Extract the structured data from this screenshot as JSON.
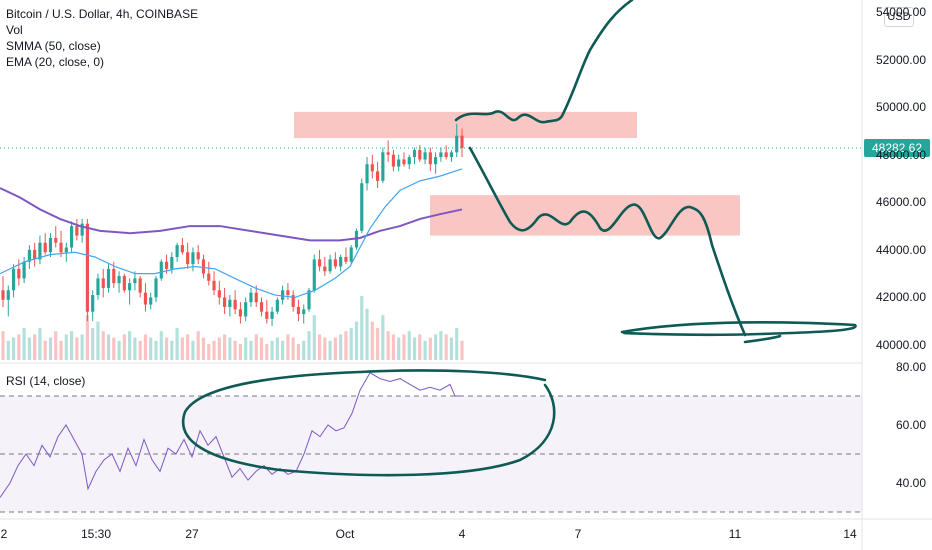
{
  "legend": {
    "title": "Bitcoin / U.S. Dollar, 4h, COINBASE",
    "vol": "Vol",
    "smma": "SMMA (50, close)",
    "ema": "EMA (20, close, 0)"
  },
  "rsi_label": "RSI (14, close)",
  "currency": "USD",
  "last_price": "48282.62",
  "colors": {
    "up": "#26a69a",
    "down": "#ef5350",
    "smma": "#7e57c2",
    "ema": "#42a5f5",
    "rsi": "#7e57c2",
    "zone": "#f7b8b4",
    "drawing": "#0f5a55"
  },
  "chart_data": [
    {
      "type": "candlestick",
      "title": "Bitcoin / U.S. Dollar, 4h, COINBASE",
      "ylim": [
        40000,
        54000
      ],
      "price_ticks": [
        "54000.00",
        "52000.00",
        "50000.00",
        "48000.00",
        "46000.00",
        "44000.00",
        "42000.00",
        "40000.00"
      ],
      "x_ticks": [
        "2",
        "15:30",
        "27",
        "Oct",
        "4",
        "7",
        "11",
        "14"
      ],
      "last_price": 48282.62,
      "candles": [
        [
          42300,
          42900,
          41600,
          41900
        ],
        [
          41900,
          42500,
          41200,
          42300
        ],
        [
          42300,
          43400,
          42000,
          43200
        ],
        [
          43200,
          43600,
          42500,
          42800
        ],
        [
          42800,
          43700,
          42600,
          43500
        ],
        [
          43500,
          44200,
          43200,
          44000
        ],
        [
          44000,
          44300,
          43300,
          43600
        ],
        [
          43600,
          44600,
          43400,
          44300
        ],
        [
          44300,
          44700,
          43800,
          43900
        ],
        [
          43900,
          44700,
          43700,
          44500
        ],
        [
          44500,
          45000,
          44100,
          44300
        ],
        [
          44300,
          44800,
          43700,
          43900
        ],
        [
          43900,
          44300,
          43500,
          44100
        ],
        [
          44100,
          45200,
          43900,
          45000
        ],
        [
          45000,
          45300,
          44400,
          44600
        ],
        [
          44600,
          45300,
          44300,
          45100
        ],
        [
          45100,
          45300,
          41000,
          41400
        ],
        [
          41400,
          42300,
          41000,
          42100
        ],
        [
          42100,
          43000,
          41900,
          42800
        ],
        [
          42800,
          43200,
          42000,
          42400
        ],
        [
          42400,
          43400,
          42200,
          43200
        ],
        [
          43200,
          43500,
          42400,
          42600
        ],
        [
          42600,
          43100,
          42200,
          42900
        ],
        [
          42900,
          43000,
          42200,
          42300
        ],
        [
          42300,
          42800,
          41700,
          42600
        ],
        [
          42600,
          43100,
          42300,
          42800
        ],
        [
          42800,
          42900,
          42000,
          42200
        ],
        [
          42200,
          42600,
          41400,
          41700
        ],
        [
          41700,
          42200,
          41500,
          42000
        ],
        [
          42000,
          42900,
          41800,
          42800
        ],
        [
          42800,
          43600,
          42700,
          43500
        ],
        [
          43500,
          43800,
          43000,
          43200
        ],
        [
          43200,
          43900,
          43000,
          43700
        ],
        [
          43700,
          44300,
          43500,
          44200
        ],
        [
          44200,
          44500,
          43800,
          43900
        ],
        [
          43900,
          44300,
          43200,
          43400
        ],
        [
          43400,
          44100,
          43100,
          43900
        ],
        [
          43900,
          44200,
          43400,
          43600
        ],
        [
          43600,
          43800,
          42800,
          43000
        ],
        [
          43000,
          43500,
          42500,
          42700
        ],
        [
          42700,
          43100,
          42100,
          42300
        ],
        [
          42300,
          42700,
          41700,
          42000
        ],
        [
          42000,
          42400,
          41300,
          41600
        ],
        [
          41600,
          42100,
          41200,
          41900
        ],
        [
          41900,
          42300,
          41300,
          41500
        ],
        [
          41500,
          41800,
          40900,
          41200
        ],
        [
          41200,
          42000,
          41000,
          41800
        ],
        [
          41800,
          42400,
          41600,
          42200
        ],
        [
          42200,
          42500,
          41600,
          41800
        ],
        [
          41800,
          42000,
          41200,
          41400
        ],
        [
          41400,
          41900,
          40900,
          41100
        ],
        [
          41100,
          41600,
          40800,
          41400
        ],
        [
          41400,
          42000,
          41300,
          41900
        ],
        [
          41900,
          42500,
          41700,
          42300
        ],
        [
          42300,
          42600,
          41900,
          42100
        ],
        [
          42100,
          42300,
          41400,
          41600
        ],
        [
          41600,
          41900,
          41000,
          41300
        ],
        [
          41300,
          41700,
          40900,
          41500
        ],
        [
          41500,
          42400,
          41400,
          42300
        ],
        [
          42300,
          43800,
          42200,
          43600
        ],
        [
          43600,
          44000,
          43100,
          43300
        ],
        [
          43300,
          43700,
          42900,
          43100
        ],
        [
          43100,
          43800,
          43000,
          43600
        ],
        [
          43600,
          43900,
          43200,
          43300
        ],
        [
          43300,
          43800,
          43100,
          43700
        ],
        [
          43700,
          44100,
          43400,
          43500
        ],
        [
          43500,
          44200,
          43400,
          44100
        ],
        [
          44100,
          44900,
          44000,
          44800
        ],
        [
          44800,
          47000,
          44700,
          46800
        ],
        [
          46800,
          47900,
          46500,
          47600
        ],
        [
          47600,
          48000,
          47000,
          47300
        ],
        [
          47300,
          47700,
          46600,
          46900
        ],
        [
          46900,
          48300,
          46800,
          48100
        ],
        [
          48100,
          48600,
          47700,
          48000
        ],
        [
          48000,
          48200,
          47300,
          47500
        ],
        [
          47500,
          48000,
          47300,
          47800
        ],
        [
          47800,
          48100,
          47500,
          47600
        ],
        [
          47600,
          48000,
          47400,
          47900
        ],
        [
          47900,
          48300,
          47600,
          48200
        ],
        [
          48200,
          48400,
          47700,
          47800
        ],
        [
          47800,
          48300,
          47600,
          48100
        ],
        [
          48100,
          48300,
          47300,
          47600
        ],
        [
          47600,
          48100,
          47200,
          47900
        ],
        [
          47900,
          48300,
          47700,
          48100
        ],
        [
          48100,
          48400,
          47800,
          47900
        ],
        [
          47900,
          48200,
          47700,
          48100
        ],
        [
          48100,
          49300,
          47900,
          48800
        ],
        [
          48800,
          49100,
          47900,
          48282.62
        ]
      ],
      "smma": [
        [
          0,
          46600
        ],
        [
          20,
          46200
        ],
        [
          40,
          45700
        ],
        [
          60,
          45300
        ],
        [
          80,
          45000
        ],
        [
          100,
          44800
        ],
        [
          130,
          44700
        ],
        [
          160,
          44800
        ],
        [
          190,
          45000
        ],
        [
          220,
          45000
        ],
        [
          250,
          44800
        ],
        [
          280,
          44600
        ],
        [
          310,
          44400
        ],
        [
          340,
          44400
        ],
        [
          360,
          44500
        ],
        [
          380,
          44800
        ],
        [
          400,
          45000
        ],
        [
          420,
          45300
        ],
        [
          440,
          45500
        ],
        [
          462,
          45700
        ]
      ],
      "ema": [
        [
          0,
          43000
        ],
        [
          25,
          43500
        ],
        [
          50,
          43800
        ],
        [
          75,
          43900
        ],
        [
          95,
          43700
        ],
        [
          115,
          43300
        ],
        [
          135,
          43000
        ],
        [
          155,
          43000
        ],
        [
          175,
          43200
        ],
        [
          195,
          43300
        ],
        [
          215,
          43200
        ],
        [
          235,
          42800
        ],
        [
          255,
          42400
        ],
        [
          275,
          42100
        ],
        [
          295,
          42000
        ],
        [
          315,
          42300
        ],
        [
          335,
          42800
        ],
        [
          350,
          43300
        ],
        [
          360,
          44100
        ],
        [
          370,
          44900
        ],
        [
          385,
          45800
        ],
        [
          400,
          46500
        ],
        [
          420,
          46900
        ],
        [
          440,
          47100
        ],
        [
          462,
          47400
        ]
      ],
      "volume": [
        9,
        6,
        7,
        8,
        10,
        7,
        8,
        10,
        6,
        7,
        9,
        6,
        8,
        9,
        7,
        8,
        14,
        10,
        12,
        9,
        8,
        7,
        6,
        8,
        9,
        7,
        6,
        8,
        7,
        6,
        9,
        7,
        6,
        10,
        7,
        8,
        6,
        9,
        7,
        5,
        6,
        7,
        8,
        7,
        6,
        5,
        7,
        6,
        8,
        7,
        5,
        6,
        7,
        6,
        8,
        7,
        5,
        6,
        9,
        14,
        8,
        7,
        6,
        7,
        8,
        9,
        10,
        12,
        20,
        16,
        12,
        10,
        14,
        9,
        8,
        7,
        8,
        9,
        7,
        8,
        6,
        7,
        8,
        9,
        8,
        7,
        10,
        6
      ],
      "zones": [
        [
          294,
          637,
          49800,
          48700
        ],
        [
          430,
          740,
          46300,
          44600
        ]
      ]
    },
    {
      "type": "line",
      "title": "RSI (14, close)",
      "ylim": [
        30,
        80
      ],
      "y_ticks": [
        "80.00",
        "60.00",
        "40.00"
      ],
      "levels": [
        70,
        50,
        30
      ],
      "series": [
        {
          "name": "RSI",
          "values": [
            [
              0,
              35
            ],
            [
              10,
              40
            ],
            [
              18,
              46
            ],
            [
              26,
              50
            ],
            [
              34,
              46
            ],
            [
              42,
              53
            ],
            [
              50,
              49
            ],
            [
              58,
              56
            ],
            [
              66,
              60
            ],
            [
              74,
              55
            ],
            [
              82,
              50
            ],
            [
              88,
              38
            ],
            [
              96,
              44
            ],
            [
              104,
              48
            ],
            [
              112,
              50
            ],
            [
              120,
              44
            ],
            [
              128,
              52
            ],
            [
              136,
              46
            ],
            [
              144,
              55
            ],
            [
              152,
              48
            ],
            [
              160,
              44
            ],
            [
              168,
              52
            ],
            [
              176,
              50
            ],
            [
              184,
              55
            ],
            [
              192,
              49
            ],
            [
              200,
              58
            ],
            [
              208,
              53
            ],
            [
              216,
              56
            ],
            [
              224,
              49
            ],
            [
              232,
              42
            ],
            [
              240,
              45
            ],
            [
              248,
              41
            ],
            [
              256,
              44
            ],
            [
              264,
              46
            ],
            [
              272,
              43
            ],
            [
              280,
              45
            ],
            [
              288,
              43
            ],
            [
              296,
              44
            ],
            [
              304,
              50
            ],
            [
              312,
              58
            ],
            [
              320,
              56
            ],
            [
              328,
              60
            ],
            [
              336,
              58
            ],
            [
              344,
              59
            ],
            [
              352,
              64
            ],
            [
              360,
              72
            ],
            [
              370,
              78
            ],
            [
              380,
              76
            ],
            [
              390,
              75
            ],
            [
              400,
              76
            ],
            [
              410,
              74
            ],
            [
              420,
              72
            ],
            [
              430,
              73
            ],
            [
              440,
              72
            ],
            [
              450,
              74
            ],
            [
              455,
              70
            ],
            [
              462,
              70
            ]
          ]
        }
      ]
    }
  ]
}
